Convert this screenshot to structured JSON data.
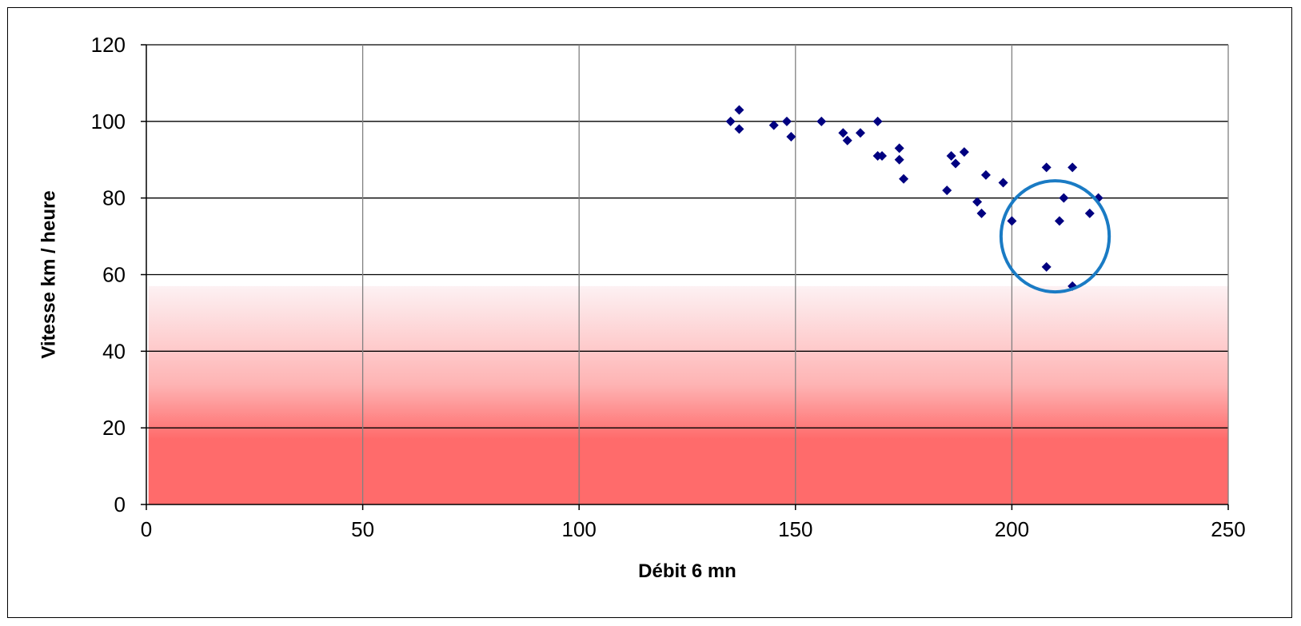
{
  "chart_data": {
    "type": "scatter",
    "title": "",
    "xlabel": "Débit  6  mn",
    "ylabel": "Vitesse  km / heure",
    "xlim": [
      0,
      250
    ],
    "ylim": [
      0,
      120
    ],
    "x_ticks": [
      0,
      50,
      100,
      150,
      200,
      250
    ],
    "y_ticks": [
      0,
      20,
      40,
      60,
      80,
      100,
      120
    ],
    "x_tick_labels": [
      "0",
      "50",
      "100",
      "150",
      "200",
      "250"
    ],
    "y_tick_labels": [
      "0",
      "20",
      "40",
      "60",
      "80",
      "100",
      "120"
    ],
    "grid": true,
    "legend": "none",
    "marker": "diamond",
    "marker_color": "#000080",
    "series": [
      {
        "points": [
          {
            "x": 135,
            "y": 100
          },
          {
            "x": 137,
            "y": 103
          },
          {
            "x": 137,
            "y": 98
          },
          {
            "x": 145,
            "y": 99
          },
          {
            "x": 148,
            "y": 100
          },
          {
            "x": 149,
            "y": 96
          },
          {
            "x": 156,
            "y": 100
          },
          {
            "x": 161,
            "y": 97
          },
          {
            "x": 162,
            "y": 95
          },
          {
            "x": 165,
            "y": 97
          },
          {
            "x": 169,
            "y": 100
          },
          {
            "x": 169,
            "y": 91
          },
          {
            "x": 170,
            "y": 91
          },
          {
            "x": 174,
            "y": 93
          },
          {
            "x": 174,
            "y": 90
          },
          {
            "x": 175,
            "y": 85
          },
          {
            "x": 185,
            "y": 82
          },
          {
            "x": 186,
            "y": 91
          },
          {
            "x": 187,
            "y": 89
          },
          {
            "x": 189,
            "y": 92
          },
          {
            "x": 192,
            "y": 79
          },
          {
            "x": 193,
            "y": 76
          },
          {
            "x": 194,
            "y": 86
          },
          {
            "x": 198,
            "y": 84
          },
          {
            "x": 200,
            "y": 74
          },
          {
            "x": 208,
            "y": 88
          },
          {
            "x": 208,
            "y": 62
          },
          {
            "x": 211,
            "y": 74
          },
          {
            "x": 212,
            "y": 80
          },
          {
            "x": 214,
            "y": 88
          },
          {
            "x": 214,
            "y": 57
          },
          {
            "x": 218,
            "y": 76
          },
          {
            "x": 220,
            "y": 80
          }
        ]
      }
    ],
    "shaded_region": {
      "x_range": [
        0.5,
        250
      ],
      "y_range": [
        0,
        57
      ],
      "color_bottom": "#ff6b6b",
      "color_top": "#fdf1f3"
    },
    "annotation_circle": {
      "center": {
        "x": 210,
        "y": 70
      },
      "radius_x": 12.5,
      "radius_y": 14.5,
      "color": "#1a7bc4"
    },
    "colors": {
      "grid_major_y": "#000000",
      "grid_major_x": "#808080",
      "axis": "#000000"
    }
  }
}
